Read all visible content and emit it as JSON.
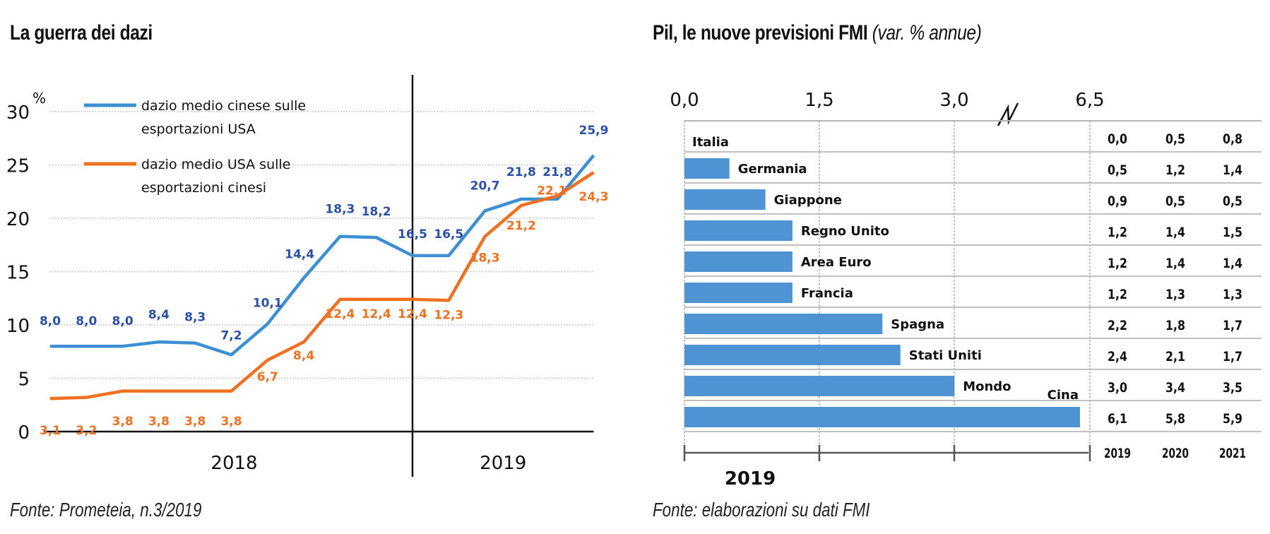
{
  "chart_data": [
    {
      "type": "line",
      "title": "La guerra dei dazi",
      "ylabel": "%",
      "xlabel": "",
      "ylim": [
        0,
        30
      ],
      "yticks": [
        "0",
        "5",
        "10",
        "15",
        "20",
        "25",
        "30"
      ],
      "ytick_values": [
        0,
        5,
        10,
        15,
        20,
        25,
        30
      ],
      "grid": true,
      "legend_position": "top-left",
      "period_labels": [
        "2018",
        "2019"
      ],
      "period_split_index": 10,
      "series": [
        {
          "name": "dazio medio cinese sulle esportazioni USA",
          "legend_lines": [
            "dazio medio cinese sulle",
            "esportazioni USA"
          ],
          "color": "#3d8fd4",
          "label_color": "#2a4fa6",
          "values": [
            8.0,
            8.0,
            8.0,
            8.4,
            8.3,
            7.2,
            10.1,
            14.4,
            18.3,
            18.2,
            16.5,
            16.5,
            20.7,
            21.8,
            21.8,
            25.9
          ],
          "labels": [
            "8,0",
            "8,0",
            "8,0",
            "8,4",
            "8,3",
            "7,2",
            "10,1",
            "14,4",
            "18,3",
            "18,2",
            "16,5",
            "16,5",
            "20,7",
            "21,8",
            "21,8",
            "25,9"
          ]
        },
        {
          "name": "dazio medio USA sulle esportazioni cinesi",
          "legend_lines": [
            "dazio medio USA sulle",
            "esportazioni cinesi"
          ],
          "color": "#f07022",
          "label_color": "#f07022",
          "values": [
            3.1,
            3.2,
            3.8,
            3.8,
            3.8,
            3.8,
            6.7,
            8.4,
            12.4,
            12.4,
            12.4,
            12.3,
            18.3,
            21.2,
            22.1,
            24.3
          ],
          "labels": [
            "3,1",
            "3,2",
            "3,8",
            "3,8",
            "3,8",
            "3,8",
            "6,7",
            "8,4",
            "12,4",
            "12,4",
            "12,4",
            "12,3",
            "18,3",
            "21,2",
            "22,1",
            "24,3"
          ]
        }
      ],
      "source": "Fonte: Prometeia, n.3/2019"
    },
    {
      "type": "bar",
      "orientation": "horizontal",
      "title": "Pil, le nuove previsioni FMI",
      "subtitle": "(var. % annue)",
      "xlabel": "2019",
      "xticks": [
        "0,0",
        "1,5",
        "3,0",
        "6,5"
      ],
      "xtick_values": [
        0.0,
        1.5,
        3.0,
        6.5
      ],
      "axis_break": "between 3,0 and 6,5",
      "grid": true,
      "bar_color": "#4e94d2",
      "categories": [
        "Italia",
        "Germania",
        "Giappone",
        "Regno Unito",
        "Area Euro",
        "Francia",
        "Spagna",
        "Stati Uniti",
        "Mondo",
        "Cina"
      ],
      "values": [
        0.0,
        0.5,
        0.9,
        1.2,
        1.2,
        1.2,
        2.2,
        2.4,
        3.0,
        6.1
      ],
      "table": {
        "columns": [
          "2019",
          "2020",
          "2021"
        ],
        "rows": [
          [
            "0,0",
            "0,5",
            "0,8"
          ],
          [
            "0,5",
            "1,2",
            "1,4"
          ],
          [
            "0,9",
            "0,5",
            "0,5"
          ],
          [
            "1,2",
            "1,4",
            "1,5"
          ],
          [
            "1,2",
            "1,4",
            "1,4"
          ],
          [
            "1,2",
            "1,3",
            "1,3"
          ],
          [
            "2,2",
            "1,8",
            "1,7"
          ],
          [
            "2,4",
            "2,1",
            "1,7"
          ],
          [
            "3,0",
            "3,4",
            "3,5"
          ],
          [
            "6,1",
            "5,8",
            "5,9"
          ]
        ]
      },
      "source": "Fonte: elaborazioni su dati FMI"
    }
  ]
}
